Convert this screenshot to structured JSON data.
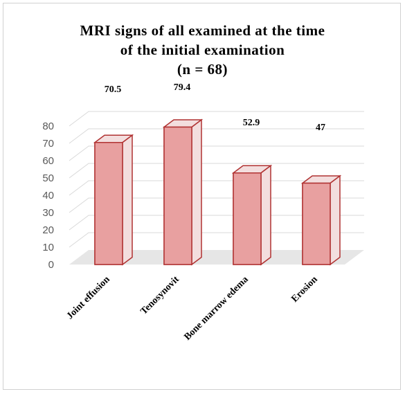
{
  "chart_data": {
    "type": "bar",
    "title_lines": [
      "MRI signs of all examined at the time",
      "of the initial examination",
      "(n = 68)"
    ],
    "categories": [
      "Joint effusion",
      "Tenosynovit",
      "Bone marrow edema",
      "Erosion"
    ],
    "values": [
      70.5,
      79.4,
      52.9,
      47
    ],
    "value_labels": [
      "70.5",
      "79.4",
      "52.9",
      "47"
    ],
    "yticks": [
      "0",
      "10",
      "20",
      "30",
      "40",
      "50",
      "60",
      "70",
      "80"
    ],
    "ylim": [
      0,
      80
    ],
    "grid": true,
    "legend": "none",
    "style": "3d",
    "colors": {
      "bar_fill": "#e8a0a0",
      "bar_edge": "#b03232",
      "bar_back": "#f3dede",
      "floor": "#e6e6e6",
      "grid": "#d9d9d9"
    }
  }
}
